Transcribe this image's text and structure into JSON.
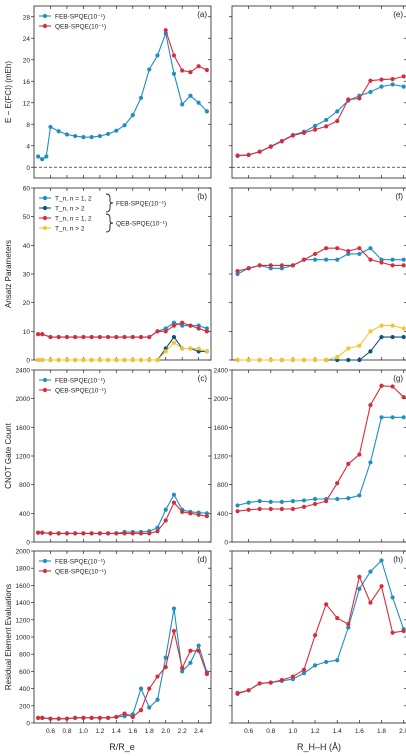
{
  "figure": {
    "x_label_left": "R/R_e",
    "x_label_right": "R_H–H (Å)",
    "colors": {
      "feb": "#1f8fbf",
      "qeb": "#d62d3c",
      "feb_dark": "#0f4f7a",
      "qeb_yellow": "#f5c431"
    }
  },
  "chart_data": [
    {
      "type": "line",
      "panel": "a",
      "label": "(a)",
      "ylabel": "E − E(FCI) (mEh)",
      "ylim": [
        -2,
        30
      ],
      "yticks": [
        0,
        4,
        8,
        12,
        16,
        20,
        24,
        28
      ],
      "xlim": [
        0.4,
        2.55
      ],
      "xticks": [
        0.6,
        0.8,
        1.0,
        1.2,
        1.4,
        1.6,
        1.8,
        2.0,
        2.2,
        2.4
      ],
      "hline": 0,
      "show_ytick_labels": true,
      "legend": [
        "FEB-SPQE(10⁻¹)",
        "QEB-SPQE(10⁻¹)"
      ],
      "series": [
        {
          "name": "FEB-SPQE(10⁻¹)",
          "color": "#1f8fbf",
          "x": [
            0.45,
            0.5,
            0.55,
            0.6,
            0.7,
            0.8,
            0.9,
            1.0,
            1.1,
            1.2,
            1.3,
            1.4,
            1.5,
            1.6,
            1.7,
            1.8,
            1.9,
            2.0,
            2.1,
            2.2,
            2.3,
            2.4,
            2.5
          ],
          "y": [
            2.0,
            1.5,
            2.0,
            7.5,
            6.7,
            6.1,
            5.8,
            5.6,
            5.6,
            5.8,
            6.2,
            6.8,
            7.8,
            9.7,
            12.9,
            18.2,
            20.8,
            24.9,
            17.4,
            11.7,
            13.3,
            12.0,
            10.4
          ]
        },
        {
          "name": "QEB-SPQE(10⁻¹)",
          "color": "#d62d3c",
          "x": [
            2.0,
            2.1,
            2.2,
            2.3,
            2.4,
            2.5
          ],
          "y": [
            25.5,
            20.8,
            18.0,
            17.7,
            18.8,
            18.1
          ]
        }
      ]
    },
    {
      "type": "line",
      "panel": "e",
      "label": "(e)",
      "ylim": [
        -2,
        30
      ],
      "yticks": [
        0,
        4,
        8,
        12,
        16,
        20,
        24,
        28
      ],
      "xlim": [
        0.45,
        2.03
      ],
      "xticks": [
        0.6,
        0.8,
        1.0,
        1.2,
        1.4,
        1.6,
        1.8,
        2.0
      ],
      "hline": 0,
      "show_ytick_labels": false,
      "series": [
        {
          "name": "FEB-SPQE(10⁻¹)",
          "color": "#1f8fbf",
          "x": [
            0.5,
            0.6,
            0.7,
            0.8,
            0.9,
            1.0,
            1.1,
            1.2,
            1.3,
            1.4,
            1.5,
            1.6,
            1.7,
            1.8,
            1.9,
            2.0
          ],
          "y": [
            2.1,
            2.3,
            2.9,
            3.9,
            4.9,
            6.0,
            6.6,
            7.7,
            8.8,
            10.4,
            12.4,
            13.3,
            14.0,
            15.0,
            15.4,
            15.0
          ]
        },
        {
          "name": "QEB-SPQE(10⁻¹)",
          "color": "#d62d3c",
          "x": [
            0.5,
            0.6,
            0.7,
            0.8,
            0.9,
            1.0,
            1.1,
            1.2,
            1.3,
            1.4,
            1.5,
            1.6,
            1.7,
            1.8,
            1.9,
            2.0
          ],
          "y": [
            2.2,
            2.3,
            2.9,
            3.8,
            4.8,
            5.9,
            6.4,
            7.0,
            7.6,
            8.6,
            12.6,
            12.8,
            16.1,
            16.3,
            16.4,
            16.9
          ]
        }
      ]
    },
    {
      "type": "line",
      "panel": "b",
      "label": "(b)",
      "ylabel": "Ansatz Parameters",
      "ylim": [
        0,
        60
      ],
      "yticks": [
        0,
        10,
        20,
        30,
        40,
        50,
        60
      ],
      "xlim": [
        0.4,
        2.55
      ],
      "xticks": [
        0.6,
        0.8,
        1.0,
        1.2,
        1.4,
        1.6,
        1.8,
        2.0,
        2.2,
        2.4
      ],
      "show_ytick_labels": true,
      "legend": [
        "T_n, n = 1, 2",
        "T_n, n > 2",
        "T_n, n = 1, 2",
        "T_n, n > 2"
      ],
      "legend_groups": [
        "FEB-SPQE(10⁻¹)",
        "QEB-SPQE(10⁻¹)"
      ],
      "series": [
        {
          "name": "T_n, n = 1, 2",
          "color": "#1f8fbf",
          "x": [
            0.45,
            0.5,
            0.6,
            0.7,
            0.8,
            0.9,
            1.0,
            1.1,
            1.2,
            1.3,
            1.4,
            1.5,
            1.6,
            1.7,
            1.8,
            1.9,
            2.0,
            2.1,
            2.2,
            2.3,
            2.4,
            2.5
          ],
          "y": [
            9,
            9,
            8,
            8,
            8,
            8,
            8,
            8,
            8,
            8,
            8,
            8,
            8,
            8,
            8,
            10,
            11,
            13,
            12,
            12,
            12,
            11
          ]
        },
        {
          "name": "T_n, n > 2",
          "color": "#0f4f7a",
          "x": [
            0.45,
            0.5,
            0.6,
            0.7,
            0.8,
            0.9,
            1.0,
            1.1,
            1.2,
            1.3,
            1.4,
            1.5,
            1.6,
            1.7,
            1.8,
            1.9,
            2.0,
            2.1,
            2.2,
            2.3,
            2.4,
            2.5
          ],
          "y": [
            0,
            0,
            0,
            0,
            0,
            0,
            0,
            0,
            0,
            0,
            0,
            0,
            0,
            0,
            0,
            0,
            4,
            8,
            4,
            4,
            3,
            3
          ]
        },
        {
          "name": "T_n, n = 1, 2",
          "color": "#d62d3c",
          "x": [
            0.45,
            0.5,
            0.6,
            0.7,
            0.8,
            0.9,
            1.0,
            1.1,
            1.2,
            1.3,
            1.4,
            1.5,
            1.6,
            1.7,
            1.8,
            1.9,
            2.0,
            2.1,
            2.2,
            2.3,
            2.4,
            2.5
          ],
          "y": [
            9,
            9,
            8,
            8,
            8,
            8,
            8,
            8,
            8,
            8,
            8,
            8,
            8,
            8,
            8,
            10,
            10,
            12,
            13,
            12,
            11,
            10
          ]
        },
        {
          "name": "T_n, n > 2",
          "color": "#f5c431",
          "x": [
            0.45,
            0.5,
            0.6,
            0.7,
            0.8,
            0.9,
            1.0,
            1.1,
            1.2,
            1.3,
            1.4,
            1.5,
            1.6,
            1.7,
            1.8,
            1.9,
            2.0,
            2.1,
            2.2,
            2.3,
            2.4,
            2.5
          ],
          "y": [
            0,
            0,
            0,
            0,
            0,
            0,
            0,
            0,
            0,
            0,
            0,
            0,
            0,
            0,
            0,
            0,
            3,
            6,
            4,
            4,
            4,
            3
          ]
        }
      ]
    },
    {
      "type": "line",
      "panel": "f",
      "label": "(f)",
      "ylim": [
        0,
        60
      ],
      "yticks": [
        0,
        10,
        20,
        30,
        40,
        50,
        60
      ],
      "xlim": [
        0.45,
        2.03
      ],
      "xticks": [
        0.6,
        0.8,
        1.0,
        1.2,
        1.4,
        1.6,
        1.8,
        2.0
      ],
      "show_ytick_labels": false,
      "series": [
        {
          "name": "T_n, n = 1, 2",
          "color": "#1f8fbf",
          "x": [
            0.5,
            0.6,
            0.7,
            0.8,
            0.9,
            1.0,
            1.1,
            1.2,
            1.3,
            1.4,
            1.5,
            1.6,
            1.7,
            1.8,
            1.9,
            2.0
          ],
          "y": [
            30,
            32,
            33,
            32,
            32,
            33,
            35,
            35,
            35,
            35,
            37,
            37,
            39,
            35,
            35,
            35
          ]
        },
        {
          "name": "T_n, n > 2",
          "color": "#0f4f7a",
          "x": [
            0.5,
            0.6,
            0.7,
            0.8,
            0.9,
            1.0,
            1.1,
            1.2,
            1.3,
            1.4,
            1.5,
            1.6,
            1.7,
            1.8,
            1.9,
            2.0
          ],
          "y": [
            0,
            0,
            0,
            0,
            0,
            0,
            0,
            0,
            0,
            0,
            0,
            0,
            3,
            8,
            8,
            8
          ]
        },
        {
          "name": "T_n, n = 1, 2",
          "color": "#d62d3c",
          "x": [
            0.5,
            0.6,
            0.7,
            0.8,
            0.9,
            1.0,
            1.1,
            1.2,
            1.3,
            1.4,
            1.5,
            1.6,
            1.7,
            1.8,
            1.9,
            2.0
          ],
          "y": [
            31,
            32,
            33,
            33,
            33,
            33,
            35,
            37,
            39,
            39,
            38,
            39,
            35,
            34,
            33,
            33
          ]
        },
        {
          "name": "T_n, n > 2",
          "color": "#f5c431",
          "x": [
            0.5,
            0.6,
            0.7,
            0.8,
            0.9,
            1.0,
            1.1,
            1.2,
            1.3,
            1.4,
            1.5,
            1.6,
            1.7,
            1.8,
            1.9,
            2.0
          ],
          "y": [
            0,
            0,
            0,
            0,
            0,
            0,
            0,
            0,
            0,
            1,
            4,
            5,
            10,
            12,
            12,
            11
          ]
        }
      ]
    },
    {
      "type": "line",
      "panel": "c",
      "label": "(c)",
      "ylabel": "CNOT Gate Count",
      "ylim": [
        0,
        2400
      ],
      "yticks": [
        0,
        400,
        800,
        1200,
        1600,
        2000,
        2400
      ],
      "xlim": [
        0.4,
        2.55
      ],
      "xticks": [
        0.6,
        0.8,
        1.0,
        1.2,
        1.4,
        1.6,
        1.8,
        2.0,
        2.2,
        2.4
      ],
      "show_ytick_labels": true,
      "legend": [
        "FEB-SPQE(10⁻¹)",
        "QEB-SPQE(10⁻¹)"
      ],
      "series": [
        {
          "name": "FEB-SPQE(10⁻¹)",
          "color": "#1f8fbf",
          "x": [
            0.45,
            0.5,
            0.6,
            0.7,
            0.8,
            0.9,
            1.0,
            1.1,
            1.2,
            1.3,
            1.4,
            1.5,
            1.6,
            1.7,
            1.8,
            1.9,
            2.0,
            2.1,
            2.2,
            2.3,
            2.4,
            2.5
          ],
          "y": [
            130,
            130,
            120,
            120,
            120,
            120,
            120,
            120,
            120,
            120,
            120,
            140,
            140,
            140,
            150,
            200,
            450,
            660,
            450,
            420,
            410,
            400
          ]
        },
        {
          "name": "QEB-SPQE(10⁻¹)",
          "color": "#d62d3c",
          "x": [
            0.45,
            0.5,
            0.6,
            0.7,
            0.8,
            0.9,
            1.0,
            1.1,
            1.2,
            1.3,
            1.4,
            1.5,
            1.6,
            1.7,
            1.8,
            1.9,
            2.0,
            2.1,
            2.2,
            2.3,
            2.4,
            2.5
          ],
          "y": [
            130,
            130,
            120,
            120,
            120,
            120,
            120,
            120,
            120,
            120,
            120,
            120,
            120,
            120,
            120,
            150,
            300,
            550,
            420,
            400,
            380,
            360
          ]
        }
      ]
    },
    {
      "type": "line",
      "panel": "g",
      "label": "(g)",
      "ylim": [
        0,
        2400
      ],
      "yticks": [
        0,
        400,
        800,
        1200,
        1600,
        2000,
        2400
      ],
      "xlim": [
        0.45,
        2.03
      ],
      "xticks": [
        0.6,
        0.8,
        1.0,
        1.2,
        1.4,
        1.6,
        1.8,
        2.0
      ],
      "show_ytick_labels": true,
      "series": [
        {
          "name": "FEB-SPQE(10⁻¹)",
          "color": "#1f8fbf",
          "x": [
            0.5,
            0.6,
            0.7,
            0.8,
            0.9,
            1.0,
            1.1,
            1.2,
            1.3,
            1.4,
            1.5,
            1.6,
            1.7,
            1.8,
            1.9,
            2.0
          ],
          "y": [
            510,
            550,
            570,
            560,
            560,
            570,
            580,
            600,
            600,
            600,
            610,
            650,
            1110,
            1740,
            1740,
            1740
          ]
        },
        {
          "name": "QEB-SPQE(10⁻¹)",
          "color": "#d62d3c",
          "x": [
            0.5,
            0.6,
            0.7,
            0.8,
            0.9,
            1.0,
            1.1,
            1.2,
            1.3,
            1.4,
            1.5,
            1.6,
            1.7,
            1.8,
            1.9,
            2.0
          ],
          "y": [
            430,
            450,
            460,
            460,
            460,
            460,
            490,
            530,
            570,
            820,
            1090,
            1220,
            1910,
            2180,
            2170,
            2020
          ]
        }
      ]
    },
    {
      "type": "line",
      "panel": "d",
      "label": "(d)",
      "ylabel": "Residual Element Evaluations",
      "ylim": [
        0,
        2000
      ],
      "yticks": [
        0,
        200,
        400,
        600,
        800,
        1000,
        1200,
        1400,
        1600,
        1800,
        2000
      ],
      "xlim": [
        0.4,
        2.55
      ],
      "xticks": [
        0.6,
        0.8,
        1.0,
        1.2,
        1.4,
        1.6,
        1.8,
        2.0,
        2.2,
        2.4
      ],
      "show_ytick_labels": true,
      "legend": [
        "FEB-SPQE(10⁻¹)",
        "QEB-SPQE(10⁻¹)"
      ],
      "series": [
        {
          "name": "FEB-SPQE(10⁻¹)",
          "color": "#1f8fbf",
          "x": [
            0.45,
            0.5,
            0.6,
            0.7,
            0.8,
            0.9,
            1.0,
            1.1,
            1.2,
            1.3,
            1.4,
            1.5,
            1.6,
            1.7,
            1.8,
            1.9,
            2.0,
            2.1,
            2.2,
            2.3,
            2.4,
            2.5
          ],
          "y": [
            60,
            60,
            50,
            50,
            50,
            60,
            60,
            60,
            60,
            60,
            70,
            80,
            100,
            400,
            180,
            270,
            760,
            1330,
            600,
            700,
            900,
            590
          ]
        },
        {
          "name": "QEB-SPQE(10⁻¹)",
          "color": "#d62d3c",
          "x": [
            0.45,
            0.5,
            0.6,
            0.7,
            0.8,
            0.9,
            1.0,
            1.1,
            1.2,
            1.3,
            1.4,
            1.5,
            1.6,
            1.7,
            1.8,
            1.9,
            2.0,
            2.1,
            2.2,
            2.3,
            2.4,
            2.5
          ],
          "y": [
            60,
            60,
            50,
            50,
            50,
            60,
            60,
            60,
            60,
            60,
            70,
            110,
            70,
            150,
            400,
            540,
            650,
            1070,
            640,
            840,
            840,
            570
          ]
        }
      ]
    },
    {
      "type": "line",
      "panel": "h",
      "label": "(h)",
      "ylim": [
        0,
        2000
      ],
      "yticks": [
        0,
        200,
        400,
        600,
        800,
        1000,
        1200,
        1400,
        1600,
        1800,
        2000
      ],
      "xlim": [
        0.45,
        2.03
      ],
      "xticks": [
        0.6,
        0.8,
        1.0,
        1.2,
        1.4,
        1.6,
        1.8,
        2.0
      ],
      "show_ytick_labels": false,
      "series": [
        {
          "name": "FEB-SPQE(10⁻¹)",
          "color": "#1f8fbf",
          "x": [
            0.5,
            0.6,
            0.7,
            0.8,
            0.9,
            1.0,
            1.1,
            1.2,
            1.3,
            1.4,
            1.5,
            1.6,
            1.7,
            1.8,
            1.9,
            2.0
          ],
          "y": [
            350,
            380,
            460,
            470,
            490,
            510,
            580,
            670,
            710,
            730,
            1110,
            1560,
            1760,
            1890,
            1460,
            1090
          ]
        },
        {
          "name": "QEB-SPQE(10⁻¹)",
          "color": "#d62d3c",
          "x": [
            0.5,
            0.6,
            0.7,
            0.8,
            0.9,
            1.0,
            1.1,
            1.2,
            1.3,
            1.4,
            1.5,
            1.6,
            1.7,
            1.8,
            1.9,
            2.0
          ],
          "y": [
            340,
            380,
            460,
            470,
            500,
            540,
            620,
            1020,
            1380,
            1220,
            1150,
            1700,
            1400,
            1590,
            1050,
            1070
          ]
        }
      ]
    }
  ]
}
